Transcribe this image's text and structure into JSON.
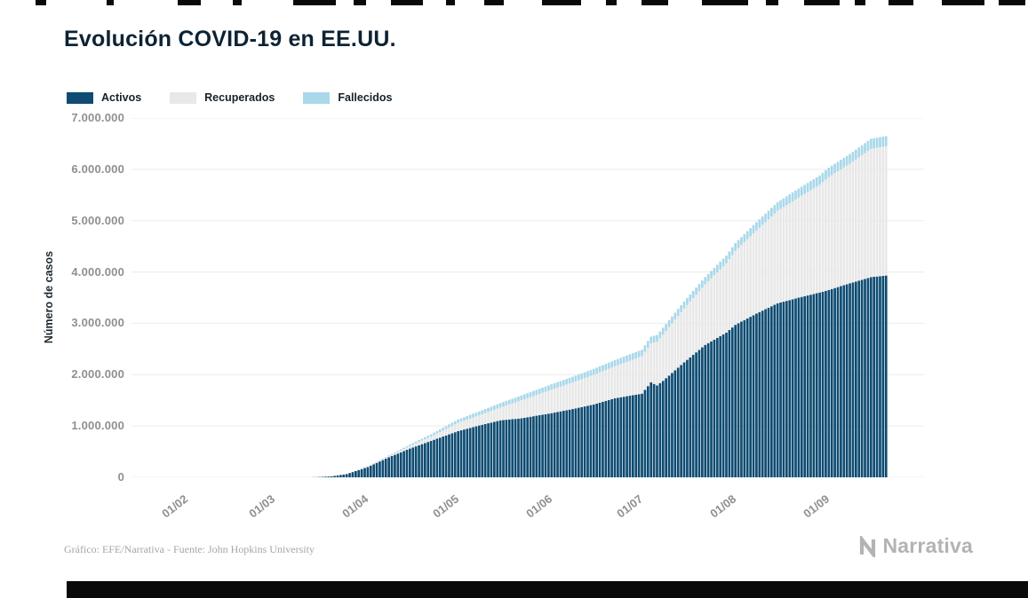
{
  "page": {
    "title": "Evolución COVID-19 en EE.UU.",
    "footer_credit": "Gráfico: EFE/Narrativa - Fuente: John Hopkins University",
    "brand": "Narrativa"
  },
  "chart_data": {
    "type": "bar",
    "stacked": true,
    "title": "Evolución COVID-19 en EE.UU.",
    "ylabel": "Número de casos",
    "xlabel": "",
    "ylim": [
      0,
      7000000
    ],
    "grid": true,
    "grid_color": "#ececec",
    "legend_position": "top-left",
    "y_ticks": [
      {
        "value": 7000000,
        "label": "7.000.000"
      },
      {
        "value": 6000000,
        "label": "6.000.000"
      },
      {
        "value": 5000000,
        "label": "5.000.000"
      },
      {
        "value": 4000000,
        "label": "4.000.000"
      },
      {
        "value": 3000000,
        "label": "3.000.000"
      },
      {
        "value": 2000000,
        "label": "2.000.000"
      },
      {
        "value": 1000000,
        "label": "1.000.000"
      },
      {
        "value": 0,
        "label": "0"
      }
    ],
    "x_domain_days": 263,
    "x_ticks": [
      {
        "label": "01/02",
        "day": 18
      },
      {
        "label": "01/03",
        "day": 47
      },
      {
        "label": "01/04",
        "day": 78
      },
      {
        "label": "01/05",
        "day": 108
      },
      {
        "label": "01/06",
        "day": 139
      },
      {
        "label": "01/07",
        "day": 169
      },
      {
        "label": "01/08",
        "day": 200
      },
      {
        "label": "01/09",
        "day": 231
      }
    ],
    "series": [
      {
        "name": "Activos",
        "color": "#0e4c72"
      },
      {
        "name": "Recuperados",
        "color": "#e8e8e8"
      },
      {
        "name": "Fallecidos",
        "color": "#a9d8ea"
      }
    ],
    "points": [
      {
        "day": 8,
        "activos": 0,
        "recuperados": 0,
        "fallecidos": 0
      },
      {
        "day": 47,
        "activos": 60,
        "recuperados": 7,
        "fallecidos": 1
      },
      {
        "day": 56,
        "activos": 900,
        "recuperados": 10,
        "fallecidos": 30
      },
      {
        "day": 61,
        "activos": 3400,
        "recuperados": 60,
        "fallecidos": 70
      },
      {
        "day": 66,
        "activos": 18800,
        "recuperados": 150,
        "fallecidos": 280
      },
      {
        "day": 71,
        "activos": 63000,
        "recuperados": 400,
        "fallecidos": 950
      },
      {
        "day": 78,
        "activos": 200000,
        "recuperados": 8500,
        "fallecidos": 5100
      },
      {
        "day": 85,
        "activos": 390000,
        "recuperados": 22000,
        "fallecidos": 14800
      },
      {
        "day": 92,
        "activos": 560000,
        "recuperados": 50000,
        "fallecidos": 28300
      },
      {
        "day": 99,
        "activos": 710000,
        "recuperados": 82000,
        "fallecidos": 46600
      },
      {
        "day": 108,
        "activos": 900000,
        "recuperados": 164000,
        "fallecidos": 63000
      },
      {
        "day": 115,
        "activos": 1010000,
        "recuperados": 198000,
        "fallecidos": 77000
      },
      {
        "day": 122,
        "activos": 1110000,
        "recuperados": 250000,
        "fallecidos": 86000
      },
      {
        "day": 129,
        "activos": 1150000,
        "recuperados": 350000,
        "fallecidos": 95000
      },
      {
        "day": 139,
        "activos": 1250000,
        "recuperados": 458000,
        "fallecidos": 105000
      },
      {
        "day": 146,
        "activos": 1330000,
        "recuperados": 518000,
        "fallecidos": 111000
      },
      {
        "day": 153,
        "activos": 1420000,
        "recuperados": 576000,
        "fallecidos": 116000
      },
      {
        "day": 160,
        "activos": 1540000,
        "recuperados": 623000,
        "fallecidos": 120000
      },
      {
        "day": 169,
        "activos": 1630000,
        "recuperados": 729000,
        "fallecidos": 128000
      },
      {
        "day": 172,
        "activos": 1850000,
        "recuperados": 762000,
        "fallecidos": 130000
      },
      {
        "day": 174,
        "activos": 1790000,
        "recuperados": 852000,
        "fallecidos": 131000
      },
      {
        "day": 176,
        "activos": 1880000,
        "recuperados": 902000,
        "fallecidos": 132500
      },
      {
        "day": 183,
        "activos": 2240000,
        "recuperados": 1050000,
        "fallecidos": 136000
      },
      {
        "day": 190,
        "activos": 2580000,
        "recuperados": 1180000,
        "fallecidos": 142000
      },
      {
        "day": 197,
        "activos": 2820000,
        "recuperados": 1350000,
        "fallecidos": 149000
      },
      {
        "day": 200,
        "activos": 2970000,
        "recuperados": 1440000,
        "fallecidos": 153000
      },
      {
        "day": 207,
        "activos": 3190000,
        "recuperados": 1620000,
        "fallecidos": 161000
      },
      {
        "day": 214,
        "activos": 3390000,
        "recuperados": 1800000,
        "fallecidos": 169000
      },
      {
        "day": 221,
        "activos": 3500000,
        "recuperados": 1950000,
        "fallecidos": 176000
      },
      {
        "day": 228,
        "activos": 3600000,
        "recuperados": 2100000,
        "fallecidos": 181000
      },
      {
        "day": 231,
        "activos": 3650000,
        "recuperados": 2200000,
        "fallecidos": 184000
      },
      {
        "day": 238,
        "activos": 3780000,
        "recuperados": 2330000,
        "fallecidos": 189000
      },
      {
        "day": 245,
        "activos": 3900000,
        "recuperados": 2500000,
        "fallecidos": 195000
      },
      {
        "day": 250,
        "activos": 3930000,
        "recuperados": 2520000,
        "fallecidos": 197000
      }
    ]
  }
}
